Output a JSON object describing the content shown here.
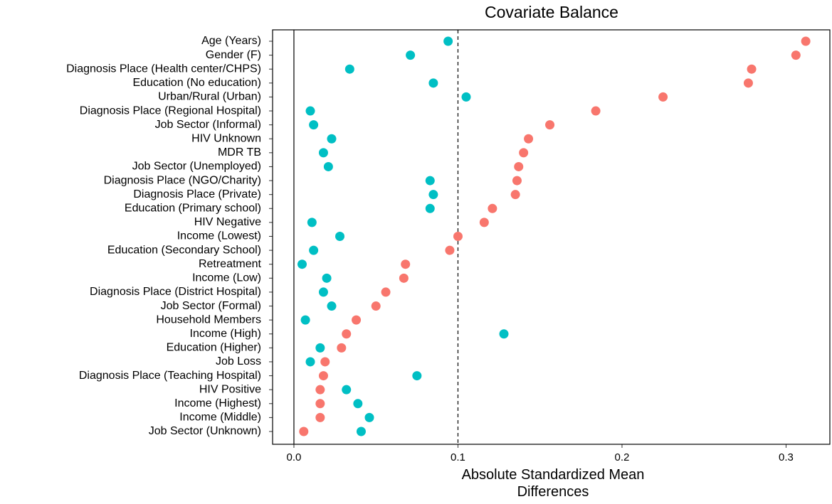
{
  "chart_data": {
    "type": "dot",
    "title": "Covariate Balance",
    "x_label": "Absolute Standardized Mean Differences",
    "categories": [
      "Age (Years)",
      "Gender (F)",
      "Diagnosis Place (Health center/CHPS)",
      "Education (No education)",
      "Urban/Rural (Urban)",
      "Diagnosis Place (Regional Hospital)",
      "Job Sector (Informal)",
      "HIV Unknown",
      "MDR TB",
      "Job Sector (Unemployed)",
      "Diagnosis Place (NGO/Charity)",
      "Diagnosis Place (Private)",
      "Education (Primary school)",
      "HIV Negative",
      "Income (Lowest)",
      "Education (Secondary School)",
      "Retreatment",
      "Income (Low)",
      "Diagnosis Place (District Hospital)",
      "Job Sector (Formal)",
      "Household Members",
      "Income (High)",
      "Education (Higher)",
      "Job Loss",
      "Diagnosis Place (Teaching Hospital)",
      "HIV Positive",
      "Income (Highest)",
      "Income (Middle)",
      "Job Sector (Unknown)"
    ],
    "series": [
      {
        "color": "#f8766d",
        "values": [
          0.312,
          0.306,
          0.279,
          0.277,
          0.225,
          0.184,
          0.156,
          0.143,
          0.14,
          0.137,
          0.136,
          0.135,
          0.121,
          0.116,
          0.1,
          0.095,
          0.068,
          0.067,
          0.056,
          0.05,
          0.038,
          0.032,
          0.029,
          0.019,
          0.018,
          0.016,
          0.016,
          0.016,
          0.006
        ]
      },
      {
        "color": "#00bfc4",
        "values": [
          0.094,
          0.071,
          0.034,
          0.085,
          0.105,
          0.01,
          0.012,
          0.023,
          0.018,
          0.021,
          0.083,
          0.085,
          0.083,
          0.011,
          0.028,
          0.012,
          0.005,
          0.02,
          0.018,
          0.023,
          0.007,
          0.128,
          0.016,
          0.01,
          0.075,
          0.032,
          0.039,
          0.046,
          0.041
        ]
      }
    ],
    "xlim": [
      -0.013,
      0.3267
    ],
    "xticks": [
      {
        "value": 0,
        "label": "0.0"
      },
      0.1,
      0.2,
      0.3
    ],
    "zero_line": 0,
    "threshold": 0.1
  }
}
